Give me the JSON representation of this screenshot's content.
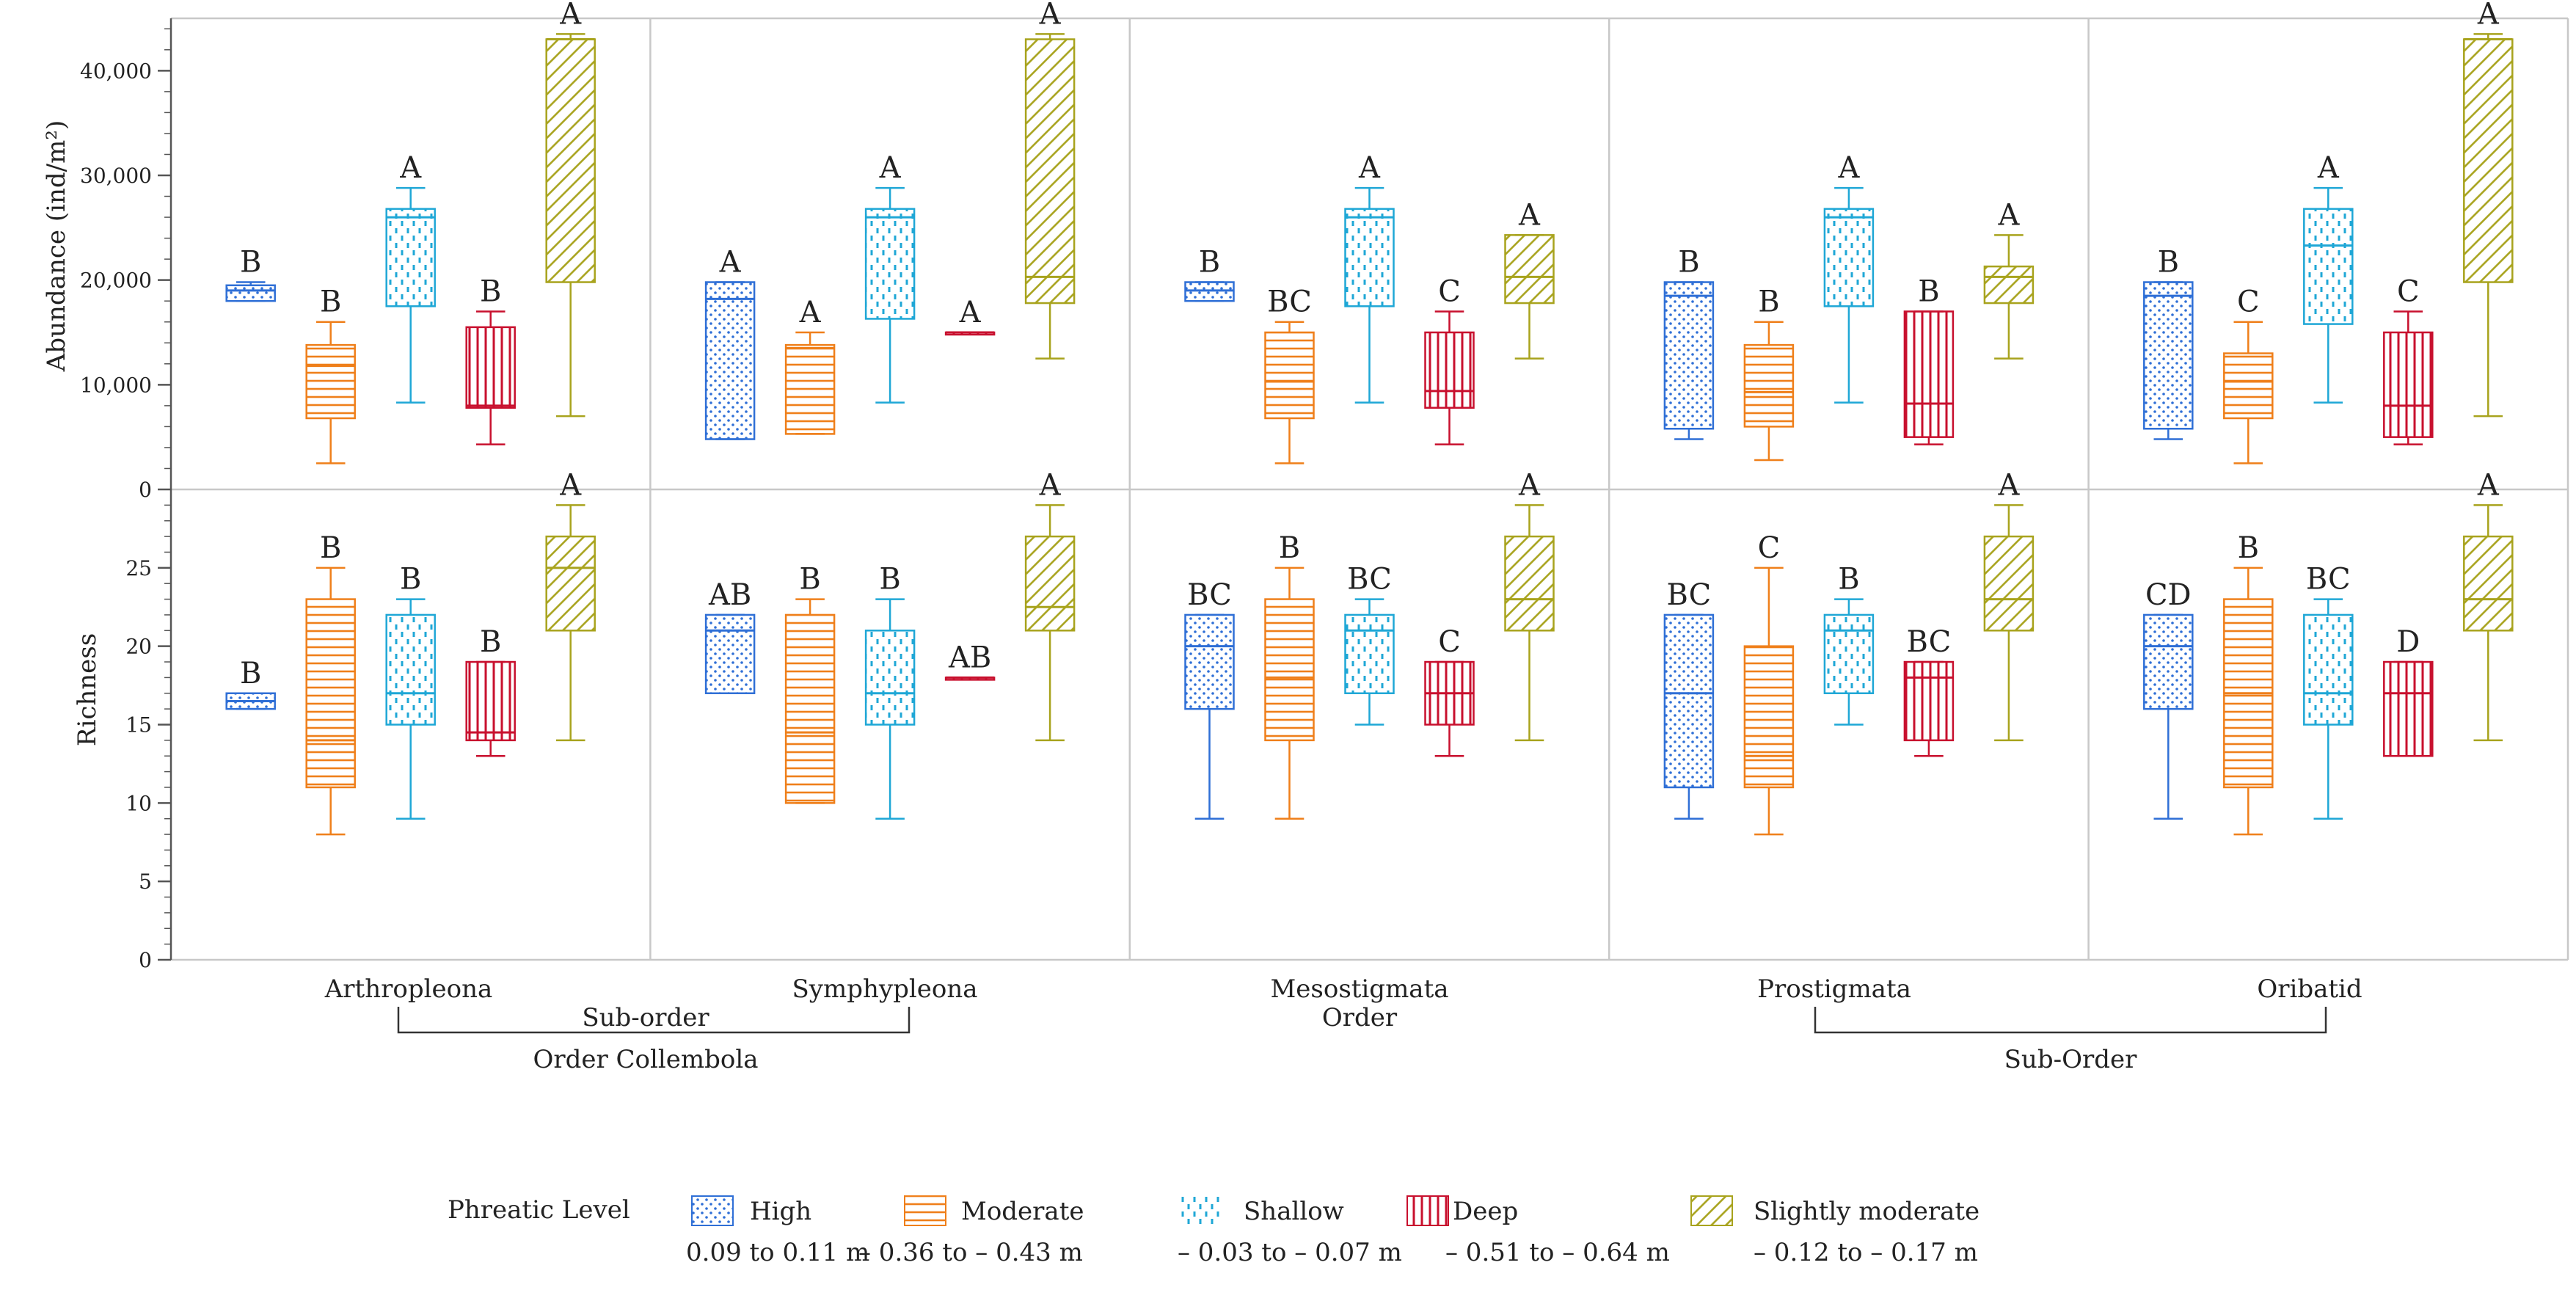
{
  "chart_data": {
    "type": "box",
    "categories": [
      "Arthropleona",
      "Symphypleona",
      "Mesostigmata",
      "Prostigmata",
      "Oribatid"
    ],
    "group_labels": {
      "suborder_left": "Sub-order",
      "order_left": "Order Collembola",
      "order_center": "Order",
      "suborder_right": "Sub-Order"
    },
    "legend": {
      "title": "Phreatic Level",
      "entries": [
        {
          "key": "high",
          "name": "High",
          "range": "0.09 to 0.11 m"
        },
        {
          "key": "moderate",
          "name": "Moderate",
          "range": "– 0.36 to – 0.43 m"
        },
        {
          "key": "shallow",
          "name": "Shallow",
          "range": "– 0.03 to – 0.07 m"
        },
        {
          "key": "deep",
          "name": "Deep",
          "range": "– 0.51 to – 0.64 m"
        },
        {
          "key": "slight",
          "name": "Slightly moderate",
          "range": "– 0.12 to – 0.17 m"
        }
      ]
    },
    "colors": {
      "high": "#2f6fd6",
      "moderate": "#ef7f1a",
      "shallow": "#1fa7d6",
      "deep": "#c8102e",
      "slight": "#a8a31d",
      "grid": "#c8c8c8",
      "axis": "#555555"
    },
    "panels": [
      {
        "key": "abundance",
        "ylabel": "Abundance (ind/m²)",
        "ylim": [
          0,
          45000
        ],
        "ticks": [
          0,
          10000,
          20000,
          30000,
          40000
        ],
        "tick_labels": [
          "0",
          "10,000",
          "20,000",
          "30,000",
          "40,000"
        ],
        "groups": [
          {
            "category": "Arthropleona",
            "boxes": [
              {
                "series": "high",
                "min": 18000,
                "q1": 18000,
                "median": 19000,
                "q3": 19500,
                "max": 19800,
                "letter": "B"
              },
              {
                "series": "moderate",
                "min": 2500,
                "q1": 6800,
                "median": 11800,
                "q3": 13800,
                "max": 16000,
                "letter": "B"
              },
              {
                "series": "shallow",
                "min": 8300,
                "q1": 17500,
                "median": 26000,
                "q3": 26800,
                "max": 28800,
                "letter": "A"
              },
              {
                "series": "deep",
                "min": 4300,
                "q1": 7800,
                "median": 8000,
                "q3": 15500,
                "max": 17000,
                "letter": "B"
              },
              {
                "series": "slight",
                "min": 7000,
                "q1": 19800,
                "median": 43000,
                "q3": 43000,
                "max": 43500,
                "letter": "A"
              }
            ]
          },
          {
            "category": "Symphypleona",
            "boxes": [
              {
                "series": "high",
                "min": 4800,
                "q1": 4800,
                "median": 18200,
                "q3": 19800,
                "max": 19800,
                "letter": "A"
              },
              {
                "series": "moderate",
                "min": 5300,
                "q1": 5300,
                "median": 13500,
                "q3": 13800,
                "max": 15000,
                "letter": "A"
              },
              {
                "series": "shallow",
                "min": 8300,
                "q1": 16300,
                "median": 26000,
                "q3": 26800,
                "max": 28800,
                "letter": "A"
              },
              {
                "series": "deep",
                "min": 15000,
                "q1": 15000,
                "median": 15000,
                "q3": 15000,
                "max": 15000,
                "letter": "A"
              },
              {
                "series": "slight",
                "min": 12500,
                "q1": 17800,
                "median": 20300,
                "q3": 43000,
                "max": 43500,
                "letter": "A"
              }
            ]
          },
          {
            "category": "Mesostigmata",
            "boxes": [
              {
                "series": "high",
                "min": 18000,
                "q1": 18000,
                "median": 19000,
                "q3": 19800,
                "max": 19800,
                "letter": "B"
              },
              {
                "series": "moderate",
                "min": 2500,
                "q1": 6800,
                "median": 10300,
                "q3": 15000,
                "max": 16000,
                "letter": "BC"
              },
              {
                "series": "shallow",
                "min": 8300,
                "q1": 17500,
                "median": 26000,
                "q3": 26800,
                "max": 28800,
                "letter": "A"
              },
              {
                "series": "deep",
                "min": 4300,
                "q1": 7800,
                "median": 9400,
                "q3": 15000,
                "max": 17000,
                "letter": "C"
              },
              {
                "series": "slight",
                "min": 12500,
                "q1": 17800,
                "median": 20300,
                "q3": 24300,
                "max": 24300,
                "letter": "A"
              }
            ]
          },
          {
            "category": "Prostigmata",
            "boxes": [
              {
                "series": "high",
                "min": 4800,
                "q1": 5800,
                "median": 18500,
                "q3": 19800,
                "max": 19800,
                "letter": "B"
              },
              {
                "series": "moderate",
                "min": 2800,
                "q1": 6000,
                "median": 9300,
                "q3": 13800,
                "max": 16000,
                "letter": "B"
              },
              {
                "series": "shallow",
                "min": 8300,
                "q1": 17500,
                "median": 26000,
                "q3": 26800,
                "max": 28800,
                "letter": "A"
              },
              {
                "series": "deep",
                "min": 4300,
                "q1": 5000,
                "median": 8200,
                "q3": 17000,
                "max": 17000,
                "letter": "B"
              },
              {
                "series": "slight",
                "min": 12500,
                "q1": 17800,
                "median": 20300,
                "q3": 21300,
                "max": 24300,
                "letter": "A"
              }
            ]
          },
          {
            "category": "Oribatid",
            "boxes": [
              {
                "series": "high",
                "min": 4800,
                "q1": 5800,
                "median": 18500,
                "q3": 19800,
                "max": 19800,
                "letter": "B"
              },
              {
                "series": "moderate",
                "min": 2500,
                "q1": 6800,
                "median": 10300,
                "q3": 13000,
                "max": 16000,
                "letter": "C"
              },
              {
                "series": "shallow",
                "min": 8300,
                "q1": 15800,
                "median": 23300,
                "q3": 26800,
                "max": 28800,
                "letter": "A"
              },
              {
                "series": "deep",
                "min": 4300,
                "q1": 5000,
                "median": 8000,
                "q3": 15000,
                "max": 17000,
                "letter": "C"
              },
              {
                "series": "slight",
                "min": 7000,
                "q1": 19800,
                "median": 43000,
                "q3": 43000,
                "max": 43500,
                "letter": "A"
              }
            ]
          }
        ]
      },
      {
        "key": "richness",
        "ylabel": "Richness",
        "ylim": [
          0,
          30
        ],
        "ticks": [
          0,
          5,
          10,
          15,
          20,
          25
        ],
        "tick_labels": [
          "0",
          "5",
          "10",
          "15",
          "20",
          "25"
        ],
        "groups": [
          {
            "category": "Arthropleona",
            "boxes": [
              {
                "series": "high",
                "min": 16,
                "q1": 16,
                "median": 16.5,
                "q3": 17,
                "max": 17,
                "letter": "B"
              },
              {
                "series": "moderate",
                "min": 8,
                "q1": 11,
                "median": 14,
                "q3": 23,
                "max": 25,
                "letter": "B"
              },
              {
                "series": "shallow",
                "min": 9,
                "q1": 15,
                "median": 17,
                "q3": 22,
                "max": 23,
                "letter": "B"
              },
              {
                "series": "deep",
                "min": 13,
                "q1": 14,
                "median": 14.5,
                "q3": 19,
                "max": 19,
                "letter": "B"
              },
              {
                "series": "slight",
                "min": 14,
                "q1": 21,
                "median": 25,
                "q3": 27,
                "max": 29,
                "letter": "A"
              }
            ]
          },
          {
            "category": "Symphypleona",
            "boxes": [
              {
                "series": "high",
                "min": 17,
                "q1": 17,
                "median": 21,
                "q3": 22,
                "max": 22,
                "letter": "AB"
              },
              {
                "series": "moderate",
                "min": 10,
                "q1": 10,
                "median": 14.5,
                "q3": 22,
                "max": 23,
                "letter": "B"
              },
              {
                "series": "shallow",
                "min": 9,
                "q1": 15,
                "median": 17,
                "q3": 21,
                "max": 23,
                "letter": "B"
              },
              {
                "series": "deep",
                "min": 18,
                "q1": 18,
                "median": 18,
                "q3": 18,
                "max": 18,
                "letter": "AB"
              },
              {
                "series": "slight",
                "min": 14,
                "q1": 21,
                "median": 22.5,
                "q3": 27,
                "max": 29,
                "letter": "A"
              }
            ]
          },
          {
            "category": "Mesostigmata",
            "boxes": [
              {
                "series": "high",
                "min": 9,
                "q1": 16,
                "median": 20,
                "q3": 22,
                "max": 22,
                "letter": "BC"
              },
              {
                "series": "moderate",
                "min": 9,
                "q1": 14,
                "median": 18,
                "q3": 23,
                "max": 25,
                "letter": "B"
              },
              {
                "series": "shallow",
                "min": 15,
                "q1": 17,
                "median": 21,
                "q3": 22,
                "max": 23,
                "letter": "BC"
              },
              {
                "series": "deep",
                "min": 13,
                "q1": 15,
                "median": 17,
                "q3": 19,
                "max": 19,
                "letter": "C"
              },
              {
                "series": "slight",
                "min": 14,
                "q1": 21,
                "median": 23,
                "q3": 27,
                "max": 29,
                "letter": "A"
              }
            ]
          },
          {
            "category": "Prostigmata",
            "boxes": [
              {
                "series": "high",
                "min": 9,
                "q1": 11,
                "median": 17,
                "q3": 22,
                "max": 22,
                "letter": "BC"
              },
              {
                "series": "moderate",
                "min": 8,
                "q1": 11,
                "median": 13,
                "q3": 20,
                "max": 25,
                "letter": "C"
              },
              {
                "series": "shallow",
                "min": 15,
                "q1": 17,
                "median": 21,
                "q3": 22,
                "max": 23,
                "letter": "B"
              },
              {
                "series": "deep",
                "min": 13,
                "q1": 14,
                "median": 18,
                "q3": 19,
                "max": 19,
                "letter": "BC"
              },
              {
                "series": "slight",
                "min": 14,
                "q1": 21,
                "median": 23,
                "q3": 27,
                "max": 29,
                "letter": "A"
              }
            ]
          },
          {
            "category": "Oribatid",
            "boxes": [
              {
                "series": "high",
                "min": 9,
                "q1": 16,
                "median": 20,
                "q3": 22,
                "max": 22,
                "letter": "CD"
              },
              {
                "series": "moderate",
                "min": 8,
                "q1": 11,
                "median": 17,
                "q3": 23,
                "max": 25,
                "letter": "B"
              },
              {
                "series": "shallow",
                "min": 9,
                "q1": 15,
                "median": 17,
                "q3": 22,
                "max": 23,
                "letter": "BC"
              },
              {
                "series": "deep",
                "min": 13,
                "q1": 13,
                "median": 17,
                "q3": 19,
                "max": 19,
                "letter": "D"
              },
              {
                "series": "slight",
                "min": 14,
                "q1": 21,
                "median": 23,
                "q3": 27,
                "max": 29,
                "letter": "A"
              }
            ]
          }
        ]
      }
    ]
  }
}
